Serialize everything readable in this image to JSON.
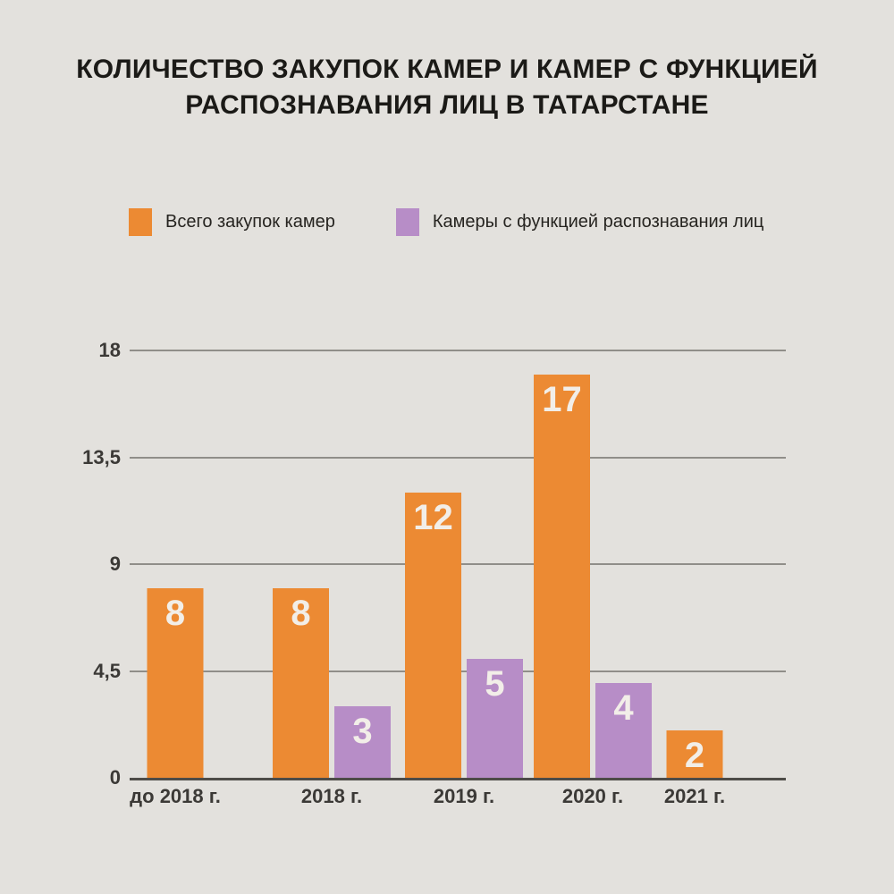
{
  "page": {
    "background": "#e3e1dd"
  },
  "title": {
    "text": "КОЛИЧЕСТВО ЗАКУПОК КАМЕР И КАМЕР С ФУНКЦИЕЙ РАСПОЗНАВАНИЯ ЛИЦ В ТАТАРСТАНЕ",
    "lines": [
      "КОЛИЧЕСТВО ЗАКУПОК КАМЕР И КАМЕР С ФУНКЦИЕЙ",
      "РАСПОЗНАВАНИЯ ЛИЦ В ТАТАРСТАНЕ"
    ]
  },
  "legend": {
    "items": [
      {
        "label": "Всего закупок камер",
        "color": "#ec8a33"
      },
      {
        "label": "Камеры с функцией распознавания лиц",
        "color": "#b78dc7"
      }
    ]
  },
  "chart_data": {
    "type": "bar",
    "title": "КОЛИЧЕСТВО ЗАКУПОК КАМЕР И КАМЕР С ФУНКЦИЕЙ РАСПОЗНАВАНИЯ ЛИЦ В ТАТАРСТАНЕ",
    "categories": [
      "до 2018 г.",
      "2018 г.",
      "2019 г.",
      "2020 г.",
      "2021 г."
    ],
    "series": [
      {
        "name": "Всего закупок камер",
        "color": "#ec8a33",
        "values": [
          8,
          8,
          12,
          17,
          2
        ]
      },
      {
        "name": "Камеры с функцией распознавания лиц",
        "color": "#b78dc7",
        "values": [
          null,
          3,
          5,
          4,
          null
        ]
      }
    ],
    "xlabel": "",
    "ylabel": "",
    "ylim": [
      0,
      18
    ],
    "yticks": [
      {
        "value": 18,
        "label": "18"
      },
      {
        "value": 13.5,
        "label": "13,5"
      },
      {
        "value": 9,
        "label": "9"
      },
      {
        "value": 4.5,
        "label": "4,5"
      },
      {
        "value": 0,
        "label": "0"
      }
    ],
    "grid": true,
    "legend_position": "top",
    "value_labels": "inside-top",
    "value_label_color": "#f2eee8",
    "grid_color": "#908e89",
    "axis_color": "#4e4c48"
  }
}
